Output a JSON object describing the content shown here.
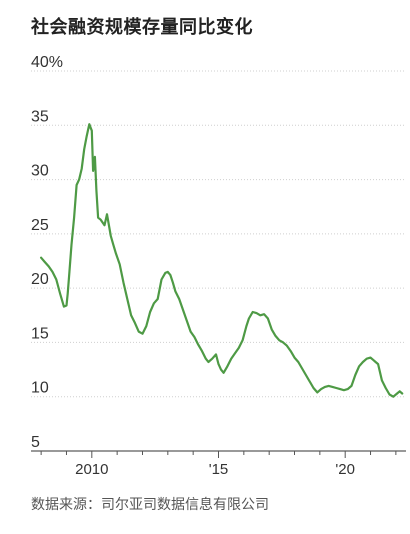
{
  "title": "社会融资规模存量同比变化",
  "source": "数据来源：司尔亚司数据信息有限公司",
  "chart_data": {
    "type": "line",
    "title": "社会融资规模存量同比变化",
    "xlabel": "",
    "ylabel": "",
    "yunit": "%",
    "ylim": [
      5,
      40
    ],
    "yticks": [
      5,
      10,
      15,
      20,
      25,
      30,
      35,
      40
    ],
    "ytick_labels": [
      "5",
      "10",
      "15",
      "20",
      "25",
      "30",
      "35",
      "40%"
    ],
    "xlim": [
      2007.6,
      2022.4
    ],
    "xticks": [
      2010,
      2015,
      2020
    ],
    "xtick_labels": [
      "2010",
      "'15",
      "'20"
    ],
    "minor_xticks": [
      2008,
      2009,
      2010,
      2011,
      2012,
      2013,
      2014,
      2015,
      2016,
      2017,
      2018,
      2019,
      2020,
      2021,
      2022
    ],
    "grid": true,
    "line_color": "#4e9a45",
    "series": [
      {
        "name": "",
        "x": [
          2008.0,
          2008.15,
          2008.3,
          2008.45,
          2008.6,
          2008.75,
          2008.9,
          2009.0,
          2009.05,
          2009.1,
          2009.2,
          2009.3,
          2009.4,
          2009.5,
          2009.6,
          2009.7,
          2009.8,
          2009.9,
          2010.0,
          2010.05,
          2010.12,
          2010.18,
          2010.25,
          2010.35,
          2010.5,
          2010.6,
          2010.75,
          2010.85,
          2010.95,
          2011.1,
          2011.25,
          2011.4,
          2011.55,
          2011.7,
          2011.85,
          2012.0,
          2012.15,
          2012.3,
          2012.45,
          2012.6,
          2012.75,
          2012.9,
          2013.0,
          2013.1,
          2013.2,
          2013.3,
          2013.45,
          2013.6,
          2013.75,
          2013.9,
          2014.05,
          2014.2,
          2014.35,
          2014.5,
          2014.6,
          2014.75,
          2014.9,
          2015.0,
          2015.1,
          2015.2,
          2015.35,
          2015.5,
          2015.65,
          2015.8,
          2015.95,
          2016.1,
          2016.2,
          2016.35,
          2016.5,
          2016.65,
          2016.8,
          2016.95,
          2017.1,
          2017.25,
          2017.4,
          2017.55,
          2017.7,
          2017.85,
          2018.0,
          2018.15,
          2018.3,
          2018.45,
          2018.6,
          2018.75,
          2018.9,
          2019.05,
          2019.2,
          2019.35,
          2019.5,
          2019.65,
          2019.8,
          2019.95,
          2020.1,
          2020.25,
          2020.4,
          2020.55,
          2020.7,
          2020.85,
          2021.0,
          2021.1,
          2021.2,
          2021.3,
          2021.45,
          2021.6,
          2021.75,
          2021.9,
          2022.05,
          2022.15,
          2022.25
        ],
        "y": [
          22.8,
          22.4,
          22.0,
          21.5,
          20.8,
          19.5,
          18.3,
          18.4,
          19.5,
          21.0,
          24.0,
          26.5,
          29.5,
          30.0,
          31.0,
          32.8,
          34.0,
          35.1,
          34.5,
          30.8,
          32.1,
          29.0,
          26.5,
          26.3,
          25.8,
          26.8,
          24.8,
          24.0,
          23.2,
          22.2,
          20.5,
          19.0,
          17.5,
          16.8,
          16.0,
          15.8,
          16.5,
          17.8,
          18.6,
          19.0,
          20.8,
          21.4,
          21.5,
          21.2,
          20.5,
          19.7,
          19.0,
          18.0,
          17.0,
          16.0,
          15.5,
          14.8,
          14.2,
          13.5,
          13.2,
          13.5,
          13.9,
          13.0,
          12.5,
          12.2,
          12.8,
          13.5,
          14.0,
          14.5,
          15.2,
          16.5,
          17.2,
          17.8,
          17.7,
          17.5,
          17.6,
          17.2,
          16.2,
          15.6,
          15.2,
          15.0,
          14.7,
          14.2,
          13.6,
          13.2,
          12.6,
          12.0,
          11.4,
          10.8,
          10.4,
          10.7,
          10.9,
          11.0,
          10.9,
          10.8,
          10.7,
          10.6,
          10.7,
          11.0,
          12.0,
          12.8,
          13.2,
          13.5,
          13.6,
          13.4,
          13.2,
          13.0,
          11.5,
          10.8,
          10.2,
          10.0,
          10.3,
          10.5,
          10.3
        ]
      }
    ]
  }
}
